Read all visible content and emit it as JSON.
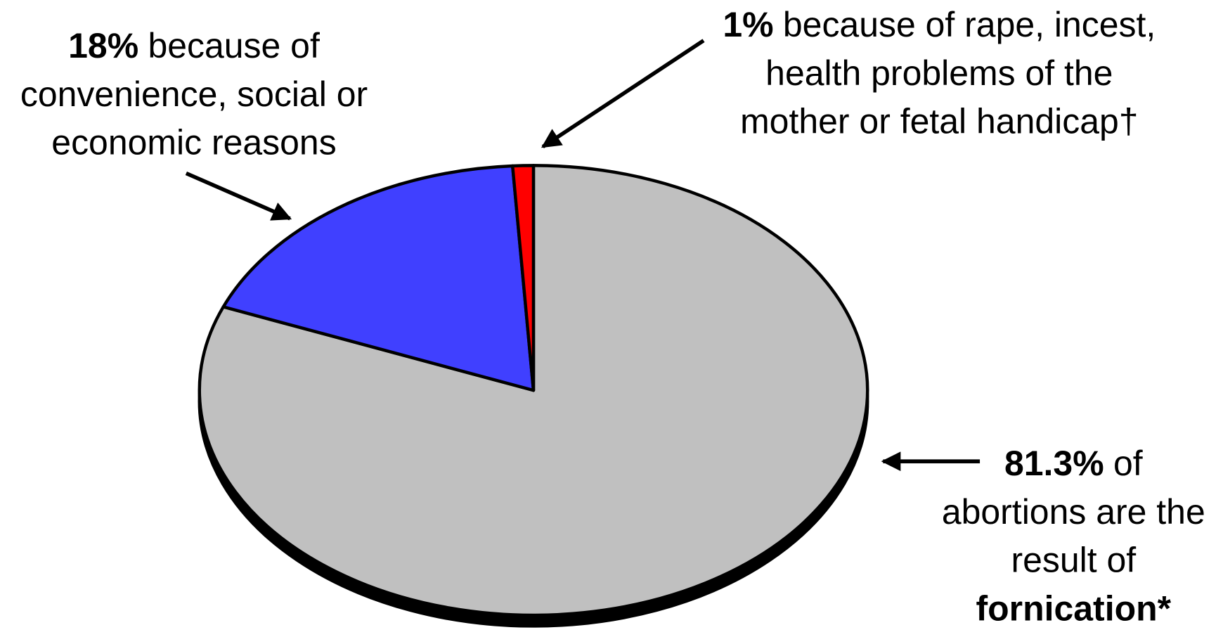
{
  "chart_data": {
    "type": "pie",
    "values": [
      81.3,
      18,
      1
    ],
    "value_labels": [
      "81.3%",
      "18%",
      "1%"
    ],
    "colors": [
      "#c0c0c0",
      "#4040ff",
      "#ff0000"
    ],
    "annotations": [
      {
        "lines": [
          "of",
          "abortions are the",
          "result of"
        ],
        "bold_line": "fornication*"
      },
      {
        "lines": [
          "because of",
          "convenience, social or",
          "economic reasons"
        ]
      },
      {
        "lines": [
          "because of rape, incest,",
          "health problems of the",
          "mother or fetal handicap†"
        ]
      }
    ]
  }
}
